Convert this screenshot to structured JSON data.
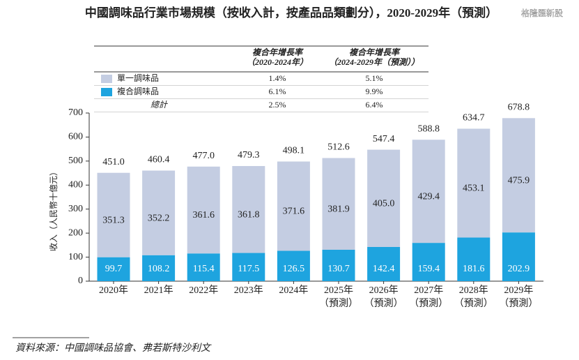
{
  "chart_data": {
    "type": "stacked-bar",
    "title": "中國調味品行業市場規模（按收入計，按產品品類劃分），2020-2029年（預測）",
    "watermark": "格隆匯新股",
    "y_label": "收入（人民幣十億元）",
    "source": "資料來源：中國調味品協會、弗若斯特沙利文",
    "categories": [
      [
        "2020年"
      ],
      [
        "2021年"
      ],
      [
        "2022年"
      ],
      [
        "2023年"
      ],
      [
        "2024年"
      ],
      [
        "2025年",
        "（預測）"
      ],
      [
        "2026年",
        "（預測）"
      ],
      [
        "2027年",
        "（預測）"
      ],
      [
        "2028年",
        "（預測）"
      ],
      [
        "2029年",
        "（預測）"
      ]
    ],
    "series": [
      {
        "name": "複合調味品",
        "color": "#1ea4df",
        "label_color": "#ffffff",
        "values": [
          99.7,
          108.2,
          115.4,
          117.5,
          126.5,
          130.7,
          142.4,
          159.4,
          181.6,
          202.9
        ]
      },
      {
        "name": "單一調味品",
        "color": "#c4cde2",
        "label_color": "#222222",
        "values": [
          351.3,
          352.2,
          361.6,
          361.8,
          371.6,
          381.9,
          405.0,
          429.4,
          453.1,
          475.9
        ],
        "value_labels": [
          "351.3",
          "352.2",
          "361.6",
          "361.8",
          "371.6",
          "381.9",
          "405.0",
          "429.4",
          "453.1",
          "475.9"
        ]
      }
    ],
    "totals": {
      "values": [
        451.0,
        460.4,
        477.0,
        479.3,
        498.1,
        512.6,
        547.4,
        588.8,
        634.7,
        678.8
      ],
      "value_labels": [
        "451.0",
        "460.4",
        "477.0",
        "479.3",
        "498.1",
        "512.6",
        "547.4",
        "588.8",
        "634.7",
        "678.8"
      ]
    },
    "ylim": [
      0,
      700
    ],
    "yticks": [
      0,
      100,
      200,
      300,
      400,
      500,
      600,
      700
    ],
    "cagr_table": {
      "headers": [
        [
          "複合年增長率",
          "（2020-2024年）"
        ],
        [
          "複合年增長率",
          "（2024-2029年（預測））"
        ]
      ],
      "rows": [
        [
          "單一調味品",
          "1.4%",
          "5.1%"
        ],
        [
          "複合調味品",
          "6.1%",
          "9.9%"
        ],
        [
          "總計",
          "2.5%",
          "6.4%"
        ]
      ]
    }
  }
}
